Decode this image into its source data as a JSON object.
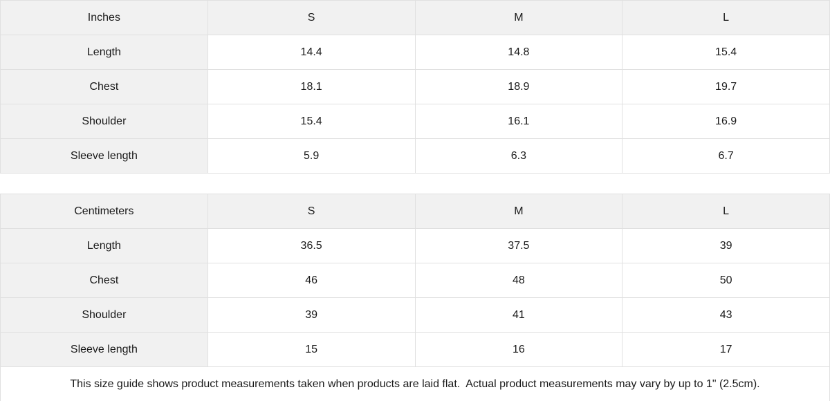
{
  "colors": {
    "header_bg": "#f1f1f1",
    "label_cell_bg": "#f1f1f1",
    "border": "#e0e0e0",
    "text": "#1a1a1a",
    "background": "#ffffff"
  },
  "tables": [
    {
      "unit_label": "Inches",
      "size_headers": [
        "S",
        "M",
        "L"
      ],
      "rows": [
        {
          "label": "Length",
          "values": [
            "14.4",
            "14.8",
            "15.4"
          ]
        },
        {
          "label": "Chest",
          "values": [
            "18.1",
            "18.9",
            "19.7"
          ]
        },
        {
          "label": "Shoulder",
          "values": [
            "15.4",
            "16.1",
            "16.9"
          ]
        },
        {
          "label": "Sleeve length",
          "values": [
            "5.9",
            "6.3",
            "6.7"
          ]
        }
      ]
    },
    {
      "unit_label": "Centimeters",
      "size_headers": [
        "S",
        "M",
        "L"
      ],
      "rows": [
        {
          "label": "Length",
          "values": [
            "36.5",
            "37.5",
            "39"
          ]
        },
        {
          "label": "Chest",
          "values": [
            "46",
            "48",
            "50"
          ]
        },
        {
          "label": "Shoulder",
          "values": [
            "39",
            "41",
            "43"
          ]
        },
        {
          "label": "Sleeve length",
          "values": [
            "15",
            "16",
            "17"
          ]
        }
      ]
    }
  ],
  "footer": {
    "note": "This size guide shows product measurements taken when products are laid flat.  Actual product measurements may vary by up to 1\" (2.5cm)."
  }
}
